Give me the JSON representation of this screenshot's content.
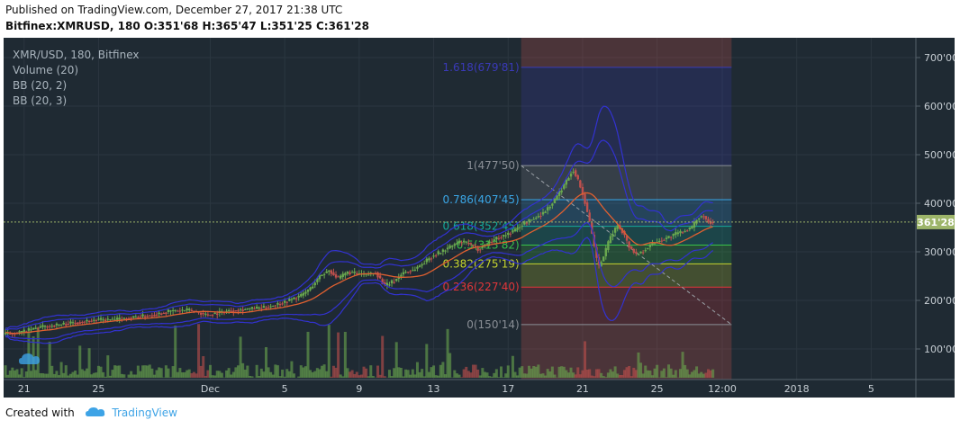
{
  "header": {
    "published": "Published on TradingView.com, December 27, 2017 21:38 UTC",
    "symbol": "Bitfinex:XMRUSD, 180",
    "ohlc": "O:351'68 H:365'47 L:351'25 C:361'28"
  },
  "legend": {
    "title": "XMR/USD, 180, Bitfinex",
    "volume": "Volume (20)",
    "bb1": "BB (20, 2)",
    "bb2": "BB (20, 3)"
  },
  "footer": {
    "created_with": "Created with",
    "brand": "TradingView"
  },
  "chart_data": {
    "type": "candlestick",
    "symbol": "XMR/USD",
    "interval": "180",
    "exchange": "Bitfinex",
    "last_price": 361.28,
    "last_price_label": "361'28",
    "y_axis": {
      "min": 50,
      "max": 720,
      "ticks": [
        {
          "value": 100,
          "label": "100'00"
        },
        {
          "value": 200,
          "label": "200'00"
        },
        {
          "value": 300,
          "label": "300'00"
        },
        {
          "value": 400,
          "label": "400'00"
        },
        {
          "value": 500,
          "label": "500'00"
        },
        {
          "value": 600,
          "label": "600'00"
        },
        {
          "value": 700,
          "label": "700'00"
        }
      ]
    },
    "x_axis": {
      "ticks": [
        {
          "day": 21,
          "label": "21"
        },
        {
          "day": 25,
          "label": "25"
        },
        {
          "day": 31,
          "label": "Dec"
        },
        {
          "day": 35,
          "label": "5"
        },
        {
          "day": 39,
          "label": "9"
        },
        {
          "day": 43,
          "label": "13"
        },
        {
          "day": 47,
          "label": "17"
        },
        {
          "day": 51,
          "label": "21"
        },
        {
          "day": 55,
          "label": "25"
        },
        {
          "day": 58.5,
          "label": "12:00"
        },
        {
          "day": 62.5,
          "label": "2018"
        },
        {
          "day": 66.5,
          "label": "5"
        }
      ]
    },
    "price_path": [
      [
        20,
        130
      ],
      [
        21,
        135
      ],
      [
        22,
        145
      ],
      [
        23,
        150
      ],
      [
        24,
        155
      ],
      [
        25,
        160
      ],
      [
        26,
        160
      ],
      [
        27,
        165
      ],
      [
        28,
        170
      ],
      [
        29,
        178
      ],
      [
        30,
        180
      ],
      [
        31,
        170
      ],
      [
        32,
        178
      ],
      [
        33,
        182
      ],
      [
        34,
        185
      ],
      [
        35,
        195
      ],
      [
        36,
        210
      ],
      [
        36.5,
        225
      ],
      [
        37,
        250
      ],
      [
        37.5,
        262
      ],
      [
        38,
        245
      ],
      [
        38.5,
        258
      ],
      [
        39,
        255
      ],
      [
        39.5,
        252
      ],
      [
        40,
        258
      ],
      [
        40.5,
        230
      ],
      [
        41,
        240
      ],
      [
        41.5,
        258
      ],
      [
        42,
        262
      ],
      [
        42.5,
        275
      ],
      [
        43,
        290
      ],
      [
        43.5,
        300
      ],
      [
        44,
        310
      ],
      [
        44.5,
        320
      ],
      [
        45,
        318
      ],
      [
        45.5,
        305
      ],
      [
        46,
        318
      ],
      [
        46.5,
        328
      ],
      [
        47,
        335
      ],
      [
        47.5,
        345
      ],
      [
        48,
        360
      ],
      [
        48.5,
        368
      ],
      [
        49,
        380
      ],
      [
        49.5,
        400
      ],
      [
        50,
        430
      ],
      [
        50.3,
        450
      ],
      [
        50.6,
        470
      ],
      [
        50.9,
        445
      ],
      [
        51.2,
        410
      ],
      [
        51.5,
        360
      ],
      [
        51.8,
        300
      ],
      [
        52,
        270
      ],
      [
        52.3,
        295
      ],
      [
        52.6,
        330
      ],
      [
        53,
        355
      ],
      [
        53.3,
        340
      ],
      [
        53.6,
        312
      ],
      [
        54,
        295
      ],
      [
        54.3,
        300
      ],
      [
        54.7,
        312
      ],
      [
        55,
        320
      ],
      [
        55.5,
        326
      ],
      [
        56,
        335
      ],
      [
        56.5,
        342
      ],
      [
        57,
        350
      ],
      [
        57.3,
        370
      ],
      [
        57.6,
        375
      ],
      [
        57.8,
        365
      ],
      [
        58,
        361.28
      ]
    ],
    "volume_range": [
      0,
      120
    ],
    "fibonacci": {
      "levels": [
        {
          "ratio": "0",
          "value": 150.14,
          "label": "0(150'14)",
          "color": "#8a8f96"
        },
        {
          "ratio": "0.236",
          "value": 227.4,
          "label": "0.236(227'40)",
          "color": "#e0363a"
        },
        {
          "ratio": "0.382",
          "value": 275.19,
          "label": "0.382(275'19)",
          "color": "#c6d42f"
        },
        {
          "ratio": "0.5",
          "value": 313.82,
          "label": "0.5(313'82)",
          "color": "#39c24a"
        },
        {
          "ratio": "0.618",
          "value": 352.45,
          "label": "0.618(352'45)",
          "color": "#14a99b"
        },
        {
          "ratio": "0.786",
          "value": 407.45,
          "label": "0.786(407'45)",
          "color": "#3aa6e6"
        },
        {
          "ratio": "1",
          "value": 477.5,
          "label": "1(477'50)",
          "color": "#8a8f96"
        },
        {
          "ratio": "1.618",
          "value": 679.81,
          "label": "1.618(679'81)",
          "color": "#3a3ab8"
        }
      ],
      "start_day": 47.7,
      "end_day": 59
    },
    "indicators": [
      "Volume (20)",
      "BB (20, 2)",
      "BB (20, 3)"
    ],
    "colors": {
      "background": "#1f2a33",
      "grid": "#2b3640",
      "up": "#6aa84f",
      "down": "#c0504d",
      "bb": "#3232d0",
      "ma": "#e06030",
      "axis_text": "#c7ced4",
      "last_price_bg": "#9db56a"
    }
  }
}
